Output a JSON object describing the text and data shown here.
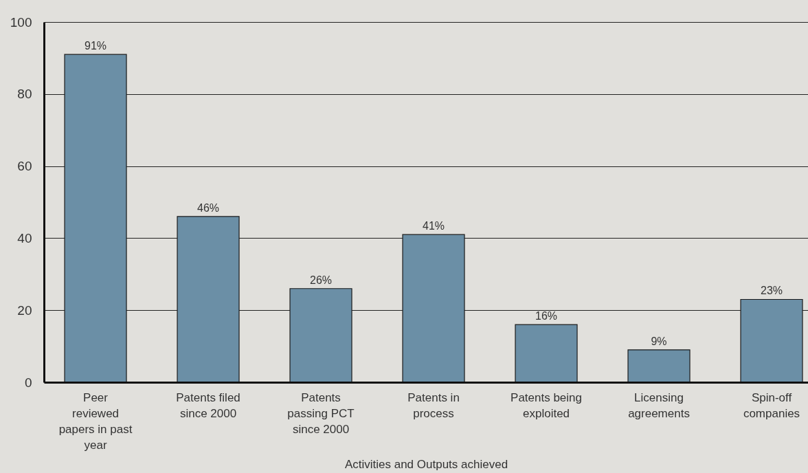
{
  "chart_data": {
    "type": "bar",
    "xlabel": "Activities and Outputs achieved",
    "categories": [
      "Peer reviewed papers in past year",
      "Patents filed since 2000",
      "Patents passing PCT since 2000",
      "Patents in process",
      "Patents being exploited",
      "Licensing agreements",
      "Spin-off companies"
    ],
    "values": [
      91,
      46,
      26,
      41,
      16,
      9,
      23
    ],
    "value_labels": [
      "91%",
      "46%",
      "26%",
      "41%",
      "16%",
      "9%",
      "23%"
    ],
    "color": "#6b8fa6",
    "ylim": [
      0,
      100
    ],
    "yticks": [
      0,
      20,
      40,
      60,
      80,
      100
    ],
    "grid": "y"
  }
}
